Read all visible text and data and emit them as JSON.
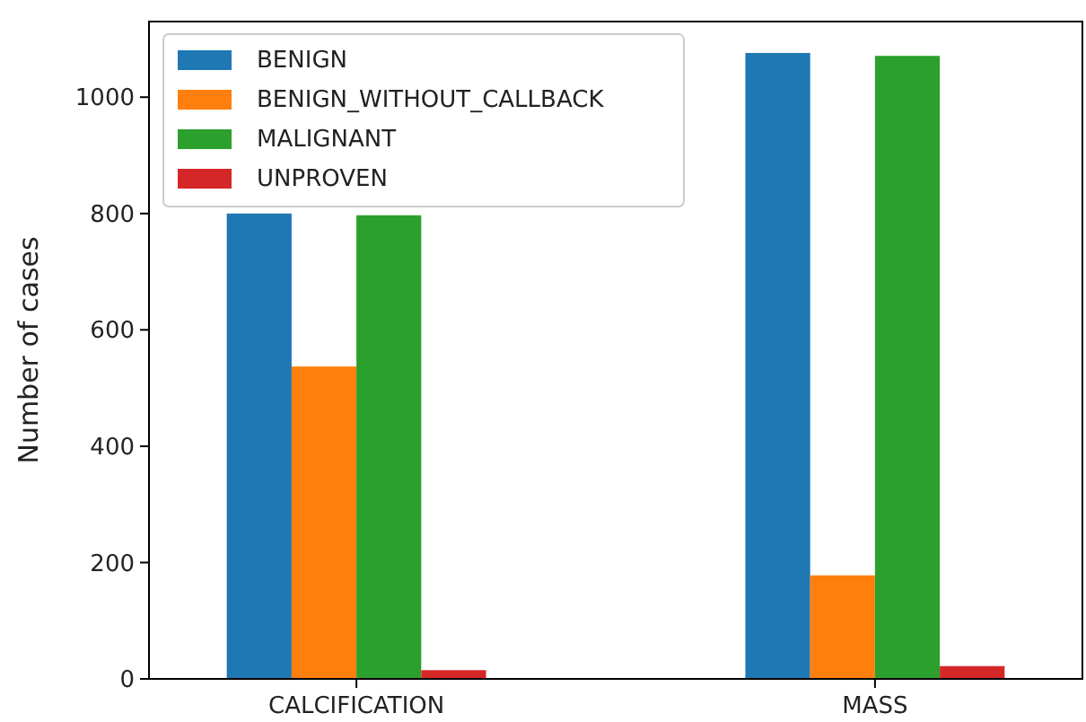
{
  "chart_data": {
    "type": "bar",
    "ylabel": "Number of cases",
    "categories": [
      "CALCIFICATION",
      "MASS"
    ],
    "series": [
      {
        "name": "BENIGN",
        "color": "#1f77b4",
        "values": [
          800,
          1076
        ]
      },
      {
        "name": "BENIGN_WITHOUT_CALLBACK",
        "color": "#ff7f0e",
        "values": [
          537,
          178
        ]
      },
      {
        "name": "MALIGNANT",
        "color": "#2ca02c",
        "values": [
          797,
          1071
        ]
      },
      {
        "name": "UNPROVEN",
        "color": "#d62728",
        "values": [
          15,
          22
        ]
      }
    ],
    "ylim": [
      0,
      1130
    ],
    "yticks": [
      0,
      200,
      400,
      600,
      800,
      1000
    ],
    "legend": "top left",
    "grid": false
  }
}
